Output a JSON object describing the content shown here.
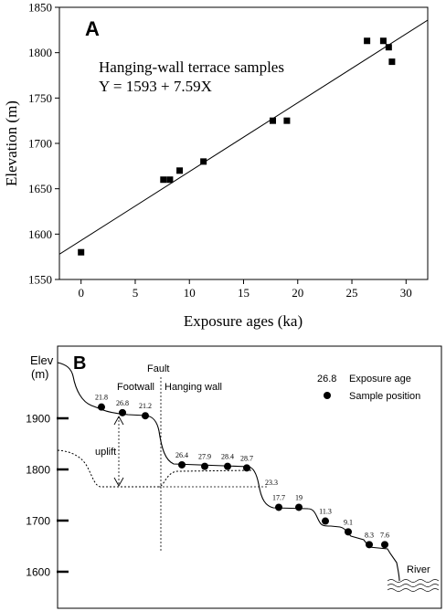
{
  "chart_data": [
    {
      "type": "scatter",
      "panel_label": "A",
      "xlabel": "Exposure ages (ka)",
      "ylabel": "Elevation (m)",
      "xlim": [
        -2,
        32
      ],
      "ylim": [
        1550,
        1850
      ],
      "xticks": [
        0,
        5,
        10,
        15,
        20,
        25,
        30
      ],
      "yticks": [
        1550,
        1600,
        1650,
        1700,
        1750,
        1800,
        1850
      ],
      "annotation": "Hanging-wall terrace samples",
      "equation": "Y = 1593 + 7.59X",
      "fit": {
        "intercept": 1593,
        "slope": 7.59,
        "x_range": [
          -2,
          32
        ]
      },
      "points": [
        {
          "x": 0,
          "y": 1580
        },
        {
          "x": 7.6,
          "y": 1660
        },
        {
          "x": 8.2,
          "y": 1660
        },
        {
          "x": 9.1,
          "y": 1670
        },
        {
          "x": 11.3,
          "y": 1680
        },
        {
          "x": 17.7,
          "y": 1725
        },
        {
          "x": 19.0,
          "y": 1725
        },
        {
          "x": 26.4,
          "y": 1813
        },
        {
          "x": 27.9,
          "y": 1813
        },
        {
          "x": 28.4,
          "y": 1806
        },
        {
          "x": 28.7,
          "y": 1790
        }
      ],
      "grid": false
    },
    {
      "type": "profile",
      "panel_label": "B",
      "ylabel_line1": "Elev",
      "ylabel_line2": "(m)",
      "yticks": [
        1900,
        1800,
        1700,
        1600
      ],
      "fault_label": "Fault",
      "footwall_label": "Footwall",
      "hanging_wall_label": "Hanging wall",
      "uplift_label": "uplift",
      "river_label": "River",
      "legend": {
        "age_example": "26.8",
        "age_text": "Exposure age",
        "sample_text": "Sample position"
      },
      "samples": [
        {
          "age": "21.8",
          "elev": 1922
        },
        {
          "age": "26.8",
          "elev": 1911
        },
        {
          "age": "21.2",
          "elev": 1905
        },
        {
          "age": "26.4",
          "elev": 1809
        },
        {
          "age": "27.9",
          "elev": 1806
        },
        {
          "age": "28.4",
          "elev": 1806
        },
        {
          "age": "28.7",
          "elev": 1803
        },
        {
          "age": "17.7",
          "elev": 1726
        },
        {
          "age": "19",
          "elev": 1726
        },
        {
          "age": "11.3",
          "elev": 1699
        },
        {
          "age": "9.1",
          "elev": 1678
        },
        {
          "age": "8.3",
          "elev": 1653
        },
        {
          "age": "7.6",
          "elev": 1653
        }
      ],
      "standalone_labels": [
        {
          "text": "23.3"
        }
      ]
    }
  ]
}
